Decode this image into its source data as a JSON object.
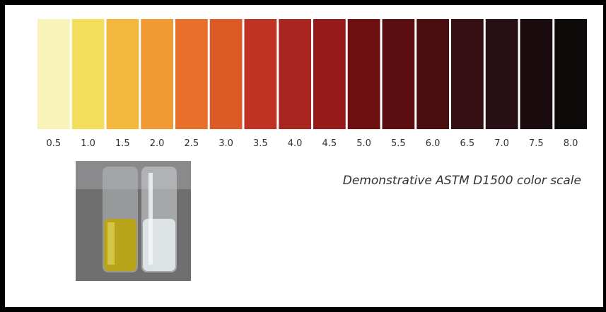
{
  "scale": {
    "swatches": [
      {
        "label": "0.5",
        "color": "#f8f3b8"
      },
      {
        "label": "1.0",
        "color": "#f4df5c"
      },
      {
        "label": "1.5",
        "color": "#f4b73d"
      },
      {
        "label": "2.0",
        "color": "#f09a35"
      },
      {
        "label": "2.5",
        "color": "#e9702a"
      },
      {
        "label": "3.0",
        "color": "#dc5a26"
      },
      {
        "label": "3.5",
        "color": "#c03324"
      },
      {
        "label": "4.0",
        "color": "#a8261f"
      },
      {
        "label": "4.5",
        "color": "#961a1c"
      },
      {
        "label": "5.0",
        "color": "#6e0f12"
      },
      {
        "label": "5.5",
        "color": "#5c0f10"
      },
      {
        "label": "6.0",
        "color": "#4a0e10"
      },
      {
        "label": "6.5",
        "color": "#341014"
      },
      {
        "label": "7.0",
        "color": "#261014"
      },
      {
        "label": "7.5",
        "color": "#1a0c0e"
      },
      {
        "label": "8.0",
        "color": "#0e0a0a"
      }
    ],
    "caption": "Demonstrative ASTM D1500 color scale"
  }
}
